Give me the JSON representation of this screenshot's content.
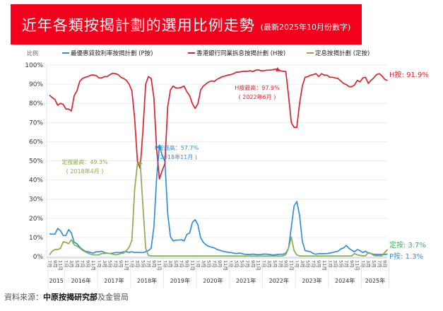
{
  "header": {
    "title": "近年各類按揭計劃的選用比例走勢",
    "subtitle": "(最新2025年10月份數字)"
  },
  "footer": {
    "source_label": "資料來源：",
    "source_main": "中原按揭研究部",
    "source_rest": "及金管局"
  },
  "colors": {
    "p": "#2f8fd8",
    "h": "#d9232e",
    "fixed": "#8aab4f",
    "fixed_label": "#2fb35a"
  },
  "chart_data": {
    "type": "line",
    "title": "近年各類按揭計劃的選用比例走勢",
    "ylabel": "比例",
    "ylim": [
      0,
      100
    ],
    "yticks": [
      "0%",
      "10%",
      "20%",
      "30%",
      "40%",
      "50%",
      "60%",
      "70%",
      "80%",
      "90%",
      "100%"
    ],
    "grid": true,
    "legend_position": "top",
    "year_labels": [
      "2015",
      "2016年",
      "2017年",
      "2018年",
      "2019年",
      "2020年",
      "2021年",
      "2022年",
      "2023年",
      "2024年",
      "2025年"
    ],
    "month_suffix": "月",
    "x": [
      "2015-07",
      "2015-08",
      "2015-09",
      "2015-10",
      "2015-11",
      "2015-12",
      "2016-01",
      "2016-02",
      "2016-03",
      "2016-04",
      "2016-05",
      "2016-06",
      "2016-07",
      "2016-08",
      "2016-09",
      "2016-10",
      "2016-11",
      "2016-12",
      "2017-01",
      "2017-02",
      "2017-03",
      "2017-04",
      "2017-05",
      "2017-06",
      "2017-07",
      "2017-08",
      "2017-09",
      "2017-10",
      "2017-11",
      "2017-12",
      "2018-01",
      "2018-02",
      "2018-03",
      "2018-04",
      "2018-05",
      "2018-06",
      "2018-07",
      "2018-08",
      "2018-09",
      "2018-10",
      "2018-11",
      "2018-12",
      "2019-01",
      "2019-02",
      "2019-03",
      "2019-04",
      "2019-05",
      "2019-06",
      "2019-07",
      "2019-08",
      "2019-09",
      "2019-10",
      "2019-11",
      "2019-12",
      "2020-01",
      "2020-02",
      "2020-03",
      "2020-04",
      "2020-05",
      "2020-06",
      "2020-07",
      "2020-08",
      "2020-09",
      "2020-10",
      "2020-11",
      "2020-12",
      "2021-01",
      "2021-02",
      "2021-03",
      "2021-04",
      "2021-05",
      "2021-06",
      "2021-07",
      "2021-08",
      "2021-09",
      "2021-10",
      "2021-11",
      "2021-12",
      "2022-01",
      "2022-02",
      "2022-03",
      "2022-04",
      "2022-05",
      "2022-06",
      "2022-07",
      "2022-08",
      "2022-09",
      "2022-10",
      "2022-11",
      "2022-12",
      "2023-01",
      "2023-02",
      "2023-03",
      "2023-04",
      "2023-05",
      "2023-06",
      "2023-07",
      "2023-08",
      "2023-09",
      "2023-10",
      "2023-11",
      "2023-12",
      "2024-01",
      "2024-02",
      "2024-03",
      "2024-04",
      "2024-05",
      "2024-06",
      "2024-07",
      "2024-08",
      "2024-09",
      "2024-10",
      "2024-11",
      "2024-12",
      "2025-01",
      "2025-02",
      "2025-03",
      "2025-04",
      "2025-05",
      "2025-06",
      "2025-07",
      "2025-08",
      "2025-09",
      "2025-10"
    ],
    "series": [
      {
        "key": "p",
        "name": "最優惠貸款利率按揭計劃 (P按)",
        "end_label": "P按: 1.3%",
        "peak_label": "P按最高：57.7%",
        "peak_date": "( 2018年11月 )",
        "peak_index": 40,
        "values": [
          11.9,
          11.7,
          11.7,
          14.7,
          13.5,
          11,
          11,
          14.1,
          12.3,
          7.4,
          6.7,
          4.9,
          3.7,
          2.8,
          2.5,
          2.1,
          1.8,
          2.5,
          2.5,
          2.8,
          2.1,
          1.8,
          1.6,
          1.8,
          2.1,
          2.1,
          2.1,
          2.5,
          2.5,
          2.2,
          2.5,
          2.1,
          2.2,
          2.1,
          2.1,
          2.5,
          3.1,
          4.3,
          15.3,
          41,
          57.7,
          53,
          49.7,
          22.7,
          10.4,
          8.2,
          8.6,
          8.6,
          8.8,
          8.2,
          11.6,
          12.3,
          17.8,
          19.3,
          16.6,
          9.8,
          7.4,
          6.1,
          5.3,
          4.9,
          4.5,
          3.7,
          3.3,
          2.8,
          2.5,
          2.2,
          2.1,
          1.8,
          1.6,
          1.8,
          1.6,
          1.2,
          1.1,
          1.1,
          1.3,
          1.1,
          1.0,
          1.1,
          1.3,
          1.3,
          1.1,
          0.9,
          0.9,
          1.1,
          1.2,
          1.2,
          1.8,
          4.3,
          15.3,
          26.4,
          28.8,
          21.5,
          8,
          3.1,
          2.8,
          2.5,
          1.6,
          1.2,
          1.5,
          1.5,
          1.5,
          1.6,
          1.8,
          2.1,
          2.5,
          2.8,
          4,
          4.5,
          5.8,
          4.3,
          3.3,
          2.5,
          3.7,
          3.1,
          2.1,
          2.8,
          1.8,
          1.6,
          1.2,
          1.1,
          1.1,
          1.1,
          1.1,
          1.3
        ]
      },
      {
        "key": "h",
        "name": "香港銀行同業拆息按揭計劃 (H按)",
        "end_label": "H按: 91.9%",
        "peak_label": "H按最高：97.9%",
        "peak_date": "( 2022年6月 )",
        "peak_index": 83,
        "values": [
          84.3,
          83,
          82,
          79,
          80,
          79.4,
          77,
          77,
          76,
          84,
          86.5,
          91.4,
          93,
          93.6,
          94,
          94.7,
          94.8,
          94.5,
          93.3,
          93.3,
          94,
          94,
          95,
          95.7,
          95.5,
          95,
          93.6,
          93,
          92,
          90,
          86.5,
          72,
          49.7,
          46,
          66,
          90,
          94,
          93,
          83,
          56,
          40.5,
          44.8,
          48.5,
          78,
          87,
          89,
          88,
          88,
          88.3,
          89,
          86,
          84,
          79.8,
          77.3,
          79.8,
          87,
          89,
          90.2,
          91.2,
          91.7,
          91.4,
          92.6,
          93.3,
          94,
          94.3,
          94.8,
          95,
          95.5,
          96.3,
          96.3,
          96.6,
          96.7,
          96.7,
          97,
          96.6,
          97.3,
          97.5,
          97,
          97,
          97.3,
          97.3,
          97.5,
          97.8,
          97.9,
          97,
          96.7,
          96.6,
          84,
          70,
          67.5,
          67.5,
          80,
          89,
          93.6,
          94,
          94.7,
          95,
          95.5,
          94,
          95.5,
          94.7,
          94.7,
          93.6,
          93.6,
          93.3,
          93,
          91.7,
          90.4,
          89.8,
          88.7,
          88.7,
          89.6,
          92,
          91.2,
          93.3,
          93.6,
          90.4,
          92,
          93.3,
          95,
          95.5,
          94.3,
          92.5,
          91.9
        ]
      },
      {
        "key": "fixed",
        "name": "定息按揭計劃 (定按)",
        "end_label": "定按: 3.7%",
        "peak_label": "定按最高：49.3%",
        "peak_date": "( 2018年4月 )",
        "peak_index": 33,
        "values": [
          0.9,
          2.8,
          3.7,
          3.7,
          4.3,
          7.7,
          7.4,
          6.7,
          8.8,
          6.1,
          5.5,
          4.5,
          3.3,
          2.5,
          1.8,
          1.2,
          0.9,
          0.9,
          0.9,
          1.6,
          1.6,
          1.8,
          1.6,
          1.2,
          0.9,
          1.1,
          1.6,
          1.8,
          3.1,
          4.9,
          8.6,
          35,
          48.5,
          49.3,
          26.4,
          4.3,
          0.6,
          0.4,
          0.3,
          0.3,
          0.3,
          0.3,
          0.3,
          0.3,
          0.3,
          0.3,
          0.3,
          0.3,
          0.3,
          0.3,
          0.3,
          0.3,
          0.3,
          0.3,
          0.3,
          0.3,
          0.3,
          0.3,
          0.3,
          0.3,
          0.3,
          0.3,
          0.3,
          0.3,
          0.3,
          0.3,
          0.3,
          0.3,
          0.3,
          0.3,
          0.3,
          0.3,
          0.3,
          0.3,
          0.3,
          0.3,
          0.3,
          0.3,
          0.3,
          0.3,
          0.3,
          0.3,
          0.3,
          0.3,
          0.3,
          0.4,
          1,
          4.3,
          10.2,
          3.1,
          0.9,
          0.4,
          0.3,
          0.3,
          0.3,
          0.3,
          0.3,
          0.3,
          0.3,
          0.3,
          0.3,
          0.3,
          0.3,
          0.3,
          0.3,
          0.3,
          0.3,
          0.3,
          0.3,
          0.3,
          0.4,
          1.6,
          0.9,
          0.6,
          0.4,
          0.4,
          2.1,
          1.6,
          0.6,
          0.4,
          0.4,
          0.4,
          2.1,
          3.7
        ]
      }
    ]
  }
}
